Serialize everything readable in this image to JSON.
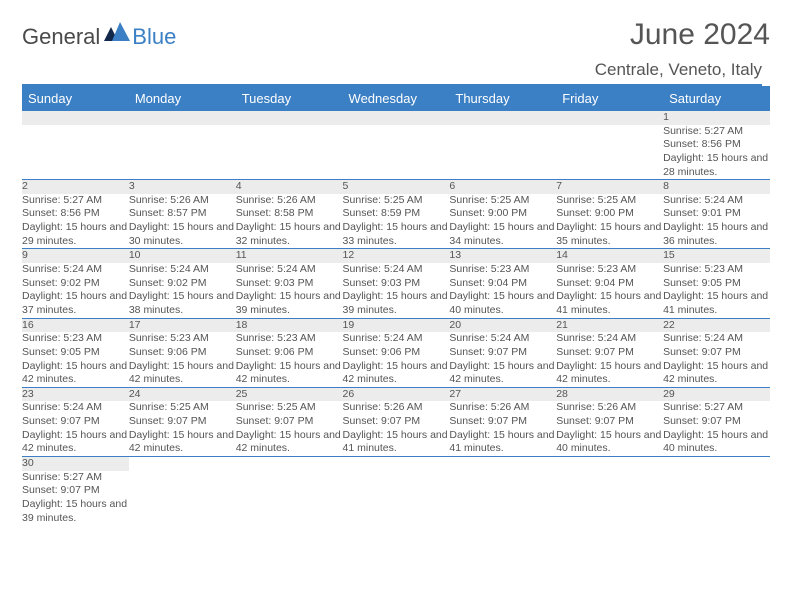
{
  "brand": {
    "main": "General",
    "sub": "Blue"
  },
  "title": "June 2024",
  "location": "Centrale, Veneto, Italy",
  "colors": {
    "accent": "#3b7fc4",
    "header_text": "#ffffff",
    "daynum_bg": "#ececec",
    "body_text": "#555555",
    "page_bg": "#ffffff"
  },
  "typography": {
    "title_fontsize": 30,
    "subtitle_fontsize": 17,
    "weekday_fontsize": 13,
    "cell_fontsize": 10.5
  },
  "calendar": {
    "type": "table",
    "columns": [
      "Sunday",
      "Monday",
      "Tuesday",
      "Wednesday",
      "Thursday",
      "Friday",
      "Saturday"
    ],
    "weeks": [
      [
        null,
        null,
        null,
        null,
        null,
        null,
        {
          "n": 1,
          "sunrise": "5:27 AM",
          "sunset": "8:56 PM",
          "daylight": "15 hours and 28 minutes."
        }
      ],
      [
        {
          "n": 2,
          "sunrise": "5:27 AM",
          "sunset": "8:56 PM",
          "daylight": "15 hours and 29 minutes."
        },
        {
          "n": 3,
          "sunrise": "5:26 AM",
          "sunset": "8:57 PM",
          "daylight": "15 hours and 30 minutes."
        },
        {
          "n": 4,
          "sunrise": "5:26 AM",
          "sunset": "8:58 PM",
          "daylight": "15 hours and 32 minutes."
        },
        {
          "n": 5,
          "sunrise": "5:25 AM",
          "sunset": "8:59 PM",
          "daylight": "15 hours and 33 minutes."
        },
        {
          "n": 6,
          "sunrise": "5:25 AM",
          "sunset": "9:00 PM",
          "daylight": "15 hours and 34 minutes."
        },
        {
          "n": 7,
          "sunrise": "5:25 AM",
          "sunset": "9:00 PM",
          "daylight": "15 hours and 35 minutes."
        },
        {
          "n": 8,
          "sunrise": "5:24 AM",
          "sunset": "9:01 PM",
          "daylight": "15 hours and 36 minutes."
        }
      ],
      [
        {
          "n": 9,
          "sunrise": "5:24 AM",
          "sunset": "9:02 PM",
          "daylight": "15 hours and 37 minutes."
        },
        {
          "n": 10,
          "sunrise": "5:24 AM",
          "sunset": "9:02 PM",
          "daylight": "15 hours and 38 minutes."
        },
        {
          "n": 11,
          "sunrise": "5:24 AM",
          "sunset": "9:03 PM",
          "daylight": "15 hours and 39 minutes."
        },
        {
          "n": 12,
          "sunrise": "5:24 AM",
          "sunset": "9:03 PM",
          "daylight": "15 hours and 39 minutes."
        },
        {
          "n": 13,
          "sunrise": "5:23 AM",
          "sunset": "9:04 PM",
          "daylight": "15 hours and 40 minutes."
        },
        {
          "n": 14,
          "sunrise": "5:23 AM",
          "sunset": "9:04 PM",
          "daylight": "15 hours and 41 minutes."
        },
        {
          "n": 15,
          "sunrise": "5:23 AM",
          "sunset": "9:05 PM",
          "daylight": "15 hours and 41 minutes."
        }
      ],
      [
        {
          "n": 16,
          "sunrise": "5:23 AM",
          "sunset": "9:05 PM",
          "daylight": "15 hours and 42 minutes."
        },
        {
          "n": 17,
          "sunrise": "5:23 AM",
          "sunset": "9:06 PM",
          "daylight": "15 hours and 42 minutes."
        },
        {
          "n": 18,
          "sunrise": "5:23 AM",
          "sunset": "9:06 PM",
          "daylight": "15 hours and 42 minutes."
        },
        {
          "n": 19,
          "sunrise": "5:24 AM",
          "sunset": "9:06 PM",
          "daylight": "15 hours and 42 minutes."
        },
        {
          "n": 20,
          "sunrise": "5:24 AM",
          "sunset": "9:07 PM",
          "daylight": "15 hours and 42 minutes."
        },
        {
          "n": 21,
          "sunrise": "5:24 AM",
          "sunset": "9:07 PM",
          "daylight": "15 hours and 42 minutes."
        },
        {
          "n": 22,
          "sunrise": "5:24 AM",
          "sunset": "9:07 PM",
          "daylight": "15 hours and 42 minutes."
        }
      ],
      [
        {
          "n": 23,
          "sunrise": "5:24 AM",
          "sunset": "9:07 PM",
          "daylight": "15 hours and 42 minutes."
        },
        {
          "n": 24,
          "sunrise": "5:25 AM",
          "sunset": "9:07 PM",
          "daylight": "15 hours and 42 minutes."
        },
        {
          "n": 25,
          "sunrise": "5:25 AM",
          "sunset": "9:07 PM",
          "daylight": "15 hours and 42 minutes."
        },
        {
          "n": 26,
          "sunrise": "5:26 AM",
          "sunset": "9:07 PM",
          "daylight": "15 hours and 41 minutes."
        },
        {
          "n": 27,
          "sunrise": "5:26 AM",
          "sunset": "9:07 PM",
          "daylight": "15 hours and 41 minutes."
        },
        {
          "n": 28,
          "sunrise": "5:26 AM",
          "sunset": "9:07 PM",
          "daylight": "15 hours and 40 minutes."
        },
        {
          "n": 29,
          "sunrise": "5:27 AM",
          "sunset": "9:07 PM",
          "daylight": "15 hours and 40 minutes."
        }
      ],
      [
        {
          "n": 30,
          "sunrise": "5:27 AM",
          "sunset": "9:07 PM",
          "daylight": "15 hours and 39 minutes."
        },
        null,
        null,
        null,
        null,
        null,
        null
      ]
    ],
    "labels": {
      "sunrise": "Sunrise:",
      "sunset": "Sunset:",
      "daylight": "Daylight:"
    }
  }
}
